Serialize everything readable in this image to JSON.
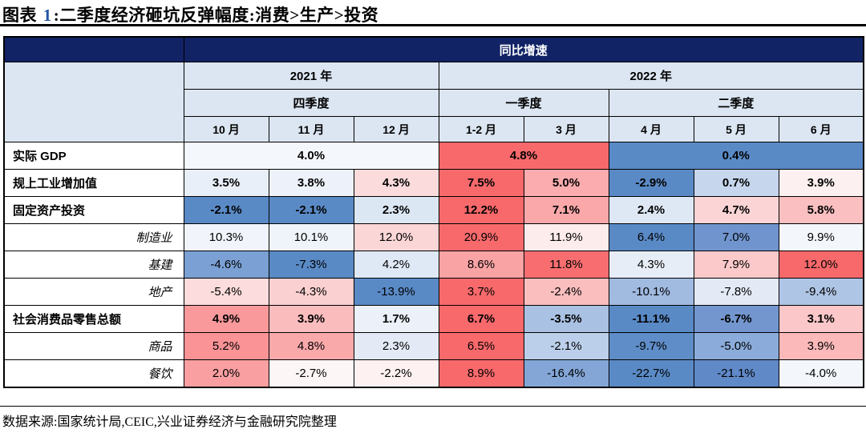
{
  "title": {
    "prefix": "图表",
    "number": "1",
    "main": ":二季度经济砸坑反弹幅度:消费>生产>投资"
  },
  "header": {
    "metric_group": "同比增速",
    "years": [
      {
        "label": "2021 年",
        "colspan": 3
      },
      {
        "label": "2022 年",
        "colspan": 5
      }
    ],
    "quarters": [
      {
        "label": "四季度",
        "colspan": 3
      },
      {
        "label": "一季度",
        "colspan": 2
      },
      {
        "label": "二季度",
        "colspan": 3
      }
    ],
    "months": [
      "10 月",
      "11 月",
      "12 月",
      "1-2 月",
      "3 月",
      "4 月",
      "5 月",
      "6 月"
    ]
  },
  "rows": [
    {
      "label": "实际 GDP",
      "level": "parent",
      "cells": [
        {
          "text": "4.0%",
          "colspan": 3,
          "bg": "#F4F7FB"
        },
        {
          "text": "4.8%",
          "colspan": 2,
          "bg": "#F8696B"
        },
        {
          "text": "0.4%",
          "colspan": 3,
          "bg": "#5A8AC6"
        }
      ]
    },
    {
      "label": "规上工业增加值",
      "level": "parent",
      "cells": [
        {
          "text": "3.5%",
          "bg": "#E9EFF9"
        },
        {
          "text": "3.8%",
          "bg": "#EDF2FA"
        },
        {
          "text": "4.3%",
          "bg": "#FBDBDC"
        },
        {
          "text": "7.5%",
          "bg": "#F8696B"
        },
        {
          "text": "5.0%",
          "bg": "#FAACAE"
        },
        {
          "text": "-2.9%",
          "bg": "#5A8AC6"
        },
        {
          "text": "0.7%",
          "bg": "#C6D6ED"
        },
        {
          "text": "3.9%",
          "bg": "#FDF0F0"
        }
      ]
    },
    {
      "label": "固定资产投资",
      "level": "parent",
      "cells": [
        {
          "text": "-2.1%",
          "bg": "#5A8AC6"
        },
        {
          "text": "-2.1%",
          "bg": "#5A8AC6"
        },
        {
          "text": "2.3%",
          "bg": "#DCE7F4"
        },
        {
          "text": "12.2%",
          "bg": "#F8696B"
        },
        {
          "text": "7.1%",
          "bg": "#FAA8AA"
        },
        {
          "text": "2.4%",
          "bg": "#DEE8F5"
        },
        {
          "text": "4.7%",
          "bg": "#FBD5D6"
        },
        {
          "text": "5.8%",
          "bg": "#FABFC0"
        }
      ]
    },
    {
      "label": "制造业",
      "level": "child",
      "cells": [
        {
          "text": "10.3%",
          "bg": "#F1F5FB"
        },
        {
          "text": "10.1%",
          "bg": "#EFF4FA"
        },
        {
          "text": "12.0%",
          "bg": "#FBD6D7"
        },
        {
          "text": "20.9%",
          "bg": "#F8696B"
        },
        {
          "text": "11.9%",
          "bg": "#FDECEC"
        },
        {
          "text": "6.4%",
          "bg": "#5A8AC6"
        },
        {
          "text": "7.0%",
          "bg": "#7095CE"
        },
        {
          "text": "9.9%",
          "bg": "#F3F6FB"
        }
      ]
    },
    {
      "label": "基建",
      "level": "child",
      "cells": [
        {
          "text": "-4.6%",
          "bg": "#7BA0D4"
        },
        {
          "text": "-7.3%",
          "bg": "#5A8AC6"
        },
        {
          "text": "4.2%",
          "bg": "#DFE9F5"
        },
        {
          "text": "8.6%",
          "bg": "#F9A3A5"
        },
        {
          "text": "11.8%",
          "bg": "#F86E70"
        },
        {
          "text": "4.3%",
          "bg": "#E7EDF7"
        },
        {
          "text": "7.9%",
          "bg": "#FBC9CA"
        },
        {
          "text": "12.0%",
          "bg": "#F8696B"
        }
      ]
    },
    {
      "label": "地产",
      "level": "child",
      "cells": [
        {
          "text": "-5.4%",
          "bg": "#FCDCDC"
        },
        {
          "text": "-4.3%",
          "bg": "#FBD0D1"
        },
        {
          "text": "-13.9%",
          "bg": "#5A8AC6"
        },
        {
          "text": "3.7%",
          "bg": "#F8696B"
        },
        {
          "text": "-2.4%",
          "bg": "#FABEBF"
        },
        {
          "text": "-10.1%",
          "bg": "#A0BAE0"
        },
        {
          "text": "-7.8%",
          "bg": "#E3EAF6"
        },
        {
          "text": "-9.4%",
          "bg": "#AFC5E5"
        }
      ]
    },
    {
      "label": "社会消费品零售总额",
      "level": "parent",
      "cells": [
        {
          "text": "4.9%",
          "bg": "#F9999C"
        },
        {
          "text": "3.9%",
          "bg": "#FBBCBD"
        },
        {
          "text": "1.7%",
          "bg": "#EBF0F9"
        },
        {
          "text": "6.7%",
          "bg": "#F8696B"
        },
        {
          "text": "-3.5%",
          "bg": "#A9C1E3"
        },
        {
          "text": "-11.1%",
          "bg": "#5A8AC6"
        },
        {
          "text": "-6.7%",
          "bg": "#7396CF"
        },
        {
          "text": "3.1%",
          "bg": "#FBC7C8"
        }
      ]
    },
    {
      "label": "商品",
      "level": "child",
      "cells": [
        {
          "text": "5.2%",
          "bg": "#F99396"
        },
        {
          "text": "4.8%",
          "bg": "#FAA9AB"
        },
        {
          "text": "2.3%",
          "bg": "#E3EAF6"
        },
        {
          "text": "6.5%",
          "bg": "#F8696B"
        },
        {
          "text": "-2.1%",
          "bg": "#BCCFEA"
        },
        {
          "text": "-9.7%",
          "bg": "#5F8DC8"
        },
        {
          "text": "-5.0%",
          "bg": "#8BACDA"
        },
        {
          "text": "3.9%",
          "bg": "#FBB9BA"
        }
      ]
    },
    {
      "label": "餐饮",
      "level": "child",
      "cells": [
        {
          "text": "2.0%",
          "bg": "#F99FA1"
        },
        {
          "text": "-2.7%",
          "bg": "#FDF6F6"
        },
        {
          "text": "-2.2%",
          "bg": "#FDF1F1"
        },
        {
          "text": "8.9%",
          "bg": "#F8696B"
        },
        {
          "text": "-16.4%",
          "bg": "#83A6D7"
        },
        {
          "text": "-22.7%",
          "bg": "#5A8AC6"
        },
        {
          "text": "-21.1%",
          "bg": "#6089C8"
        },
        {
          "text": "-4.0%",
          "bg": "#F3F7FB"
        }
      ]
    }
  ],
  "footer": {
    "source": "数据来源:国家统计局,CEIC,兴业证券经济与金融研究院整理"
  },
  "colors": {
    "navy_header": "#112365",
    "subheader_bg": "#DCE6F2",
    "scale_max_red": "#F8696B",
    "scale_mid_white": "#FCFCFF",
    "scale_min_blue": "#5A8AC6",
    "title_number_blue": "#2255A4"
  },
  "chart_data": {
    "type": "table",
    "title": "二季度经济砸坑反弹幅度:消费>生产>投资",
    "value_kind": "同比增速 (%)",
    "columns": [
      "2021年10月",
      "2021年11月",
      "2021年12月",
      "2022年1-2月",
      "2022年3月",
      "2022年4月",
      "2022年5月",
      "2022年6月"
    ],
    "quarterly_series": [
      {
        "name": "实际GDP",
        "periods": [
          "2021年四季度",
          "2022年一季度",
          "2022年二季度"
        ],
        "values": [
          4.0,
          4.8,
          0.4
        ]
      }
    ],
    "monthly_series": [
      {
        "name": "规上工业增加值",
        "values": [
          3.5,
          3.8,
          4.3,
          7.5,
          5.0,
          -2.9,
          0.7,
          3.9
        ]
      },
      {
        "name": "固定资产投资",
        "values": [
          -2.1,
          -2.1,
          2.3,
          12.2,
          7.1,
          2.4,
          4.7,
          5.8
        ]
      },
      {
        "name": "制造业",
        "values": [
          10.3,
          10.1,
          12.0,
          20.9,
          11.9,
          6.4,
          7.0,
          9.9
        ]
      },
      {
        "name": "基建",
        "values": [
          -4.6,
          -7.3,
          4.2,
          8.6,
          11.8,
          4.3,
          7.9,
          12.0
        ]
      },
      {
        "name": "地产",
        "values": [
          -5.4,
          -4.3,
          -13.9,
          3.7,
          -2.4,
          -10.1,
          -7.8,
          -9.4
        ]
      },
      {
        "name": "社会消费品零售总额",
        "values": [
          4.9,
          3.9,
          1.7,
          6.7,
          -3.5,
          -11.1,
          -6.7,
          3.1
        ]
      },
      {
        "name": "商品",
        "values": [
          5.2,
          4.8,
          2.3,
          6.5,
          -2.1,
          -9.7,
          -5.0,
          3.9
        ]
      },
      {
        "name": "餐饮",
        "values": [
          2.0,
          -2.7,
          -2.2,
          8.9,
          -16.4,
          -22.7,
          -21.1,
          -4.0
        ]
      }
    ],
    "color_scale": {
      "type": "3-color",
      "min": "#5A8AC6",
      "mid": "#FCFCFF",
      "max": "#F8696B",
      "note": "blue=low, white=mid, red=high, per row"
    }
  }
}
